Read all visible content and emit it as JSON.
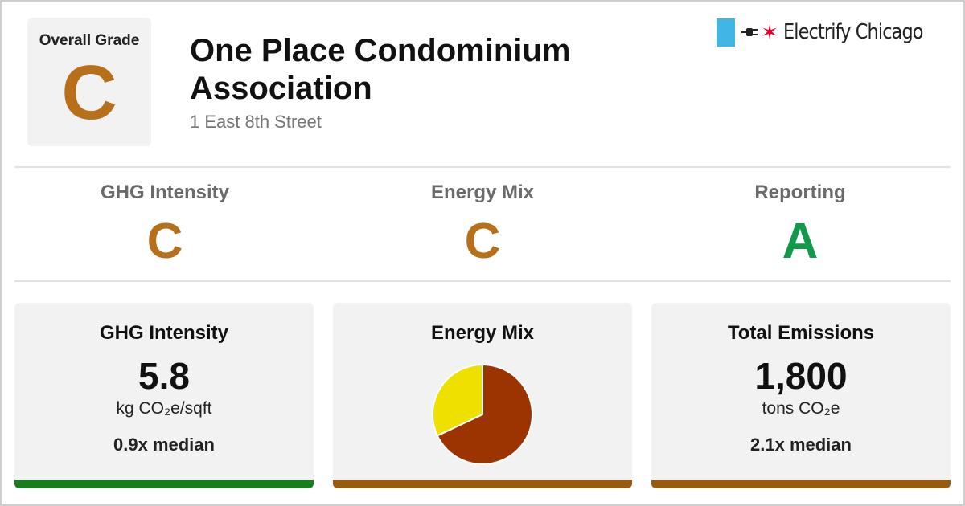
{
  "colors": {
    "grade_a": "#119a4a",
    "grade_c": "#b86f1a",
    "bar_good": "#14801c",
    "bar_bad": "#9a5a0e",
    "pie_electric": "#efe000",
    "pie_fossil": "#9b3400",
    "brand_flag": "#41b6e6",
    "brand_star": "#e4002b"
  },
  "header": {
    "overall_label": "Overall Grade",
    "overall_grade": "C",
    "building_name": "One Place Condominium Association",
    "address": "1 East 8th Street"
  },
  "brand": {
    "name": "Electrify Chicago",
    "icons": [
      "chicago-flag-icon",
      "plug-icon",
      "red-star-icon"
    ]
  },
  "subgrades": [
    {
      "label": "GHG Intensity",
      "grade": "C"
    },
    {
      "label": "Energy Mix",
      "grade": "C"
    },
    {
      "label": "Reporting",
      "grade": "A"
    }
  ],
  "cards": {
    "ghg": {
      "title": "GHG Intensity",
      "value": "5.8",
      "unit": "kg CO₂e/sqft",
      "median": "0.9x median"
    },
    "mix": {
      "title": "Energy Mix",
      "electric_fraction": 0.32
    },
    "emissions": {
      "title": "Total Emissions",
      "value": "1,800",
      "unit": "tons CO₂e",
      "median": "2.1x median"
    }
  }
}
